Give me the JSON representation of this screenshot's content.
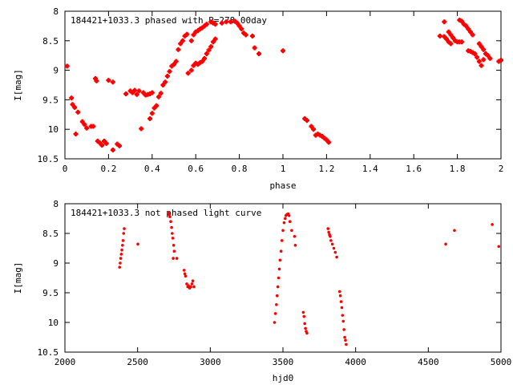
{
  "chart_data": [
    {
      "type": "scatter",
      "title": "184421+1033.3 phased with P=278.00day",
      "xlabel": "phase",
      "ylabel": "I[mag]",
      "xlim": [
        0,
        2
      ],
      "ylim": [
        10.5,
        8
      ],
      "y_inverted": true,
      "xticks": [
        "0",
        "0.2",
        "0.4",
        "0.6",
        "0.8",
        "1",
        "1.2",
        "1.4",
        "1.6",
        "1.8",
        "2"
      ],
      "yticks": [
        "8",
        "8.5",
        "9",
        "9.5",
        "10",
        "10.5"
      ],
      "marker": "plus",
      "color": "#ff0000",
      "series": [
        {
          "points": [
            [
              0.01,
              8.93
            ],
            [
              0.03,
              9.47
            ],
            [
              0.035,
              9.58
            ],
            [
              0.045,
              9.63
            ],
            [
              0.06,
              9.71
            ],
            [
              0.08,
              9.87
            ],
            [
              0.09,
              9.92
            ],
            [
              0.1,
              9.98
            ],
            [
              0.12,
              9.95
            ],
            [
              0.13,
              9.95
            ],
            [
              0.05,
              10.08
            ],
            [
              0.14,
              9.14
            ],
            [
              0.145,
              9.18
            ],
            [
              0.15,
              10.2
            ],
            [
              0.16,
              10.23
            ],
            [
              0.17,
              10.27
            ],
            [
              0.18,
              10.2
            ],
            [
              0.19,
              10.24
            ],
            [
              0.2,
              9.17
            ],
            [
              0.22,
              9.2
            ],
            [
              0.22,
              10.35
            ],
            [
              0.24,
              10.25
            ],
            [
              0.25,
              10.28
            ],
            [
              0.28,
              9.4
            ],
            [
              0.3,
              9.35
            ],
            [
              0.31,
              9.38
            ],
            [
              0.32,
              9.34
            ],
            [
              0.33,
              9.41
            ],
            [
              0.34,
              9.35
            ],
            [
              0.36,
              9.38
            ],
            [
              0.37,
              9.42
            ],
            [
              0.38,
              9.41
            ],
            [
              0.39,
              9.4
            ],
            [
              0.4,
              9.38
            ],
            [
              0.35,
              9.99
            ],
            [
              0.39,
              9.82
            ],
            [
              0.4,
              9.73
            ],
            [
              0.41,
              9.64
            ],
            [
              0.42,
              9.6
            ],
            [
              0.43,
              9.45
            ],
            [
              0.44,
              9.39
            ],
            [
              0.45,
              9.25
            ],
            [
              0.46,
              9.2
            ],
            [
              0.47,
              9.1
            ],
            [
              0.48,
              9.02
            ],
            [
              0.49,
              8.93
            ],
            [
              0.5,
              8.9
            ],
            [
              0.51,
              8.85
            ],
            [
              0.52,
              8.65
            ],
            [
              0.53,
              8.55
            ],
            [
              0.54,
              8.5
            ],
            [
              0.55,
              8.42
            ],
            [
              0.56,
              8.39
            ],
            [
              0.565,
              9.05
            ],
            [
              0.58,
              8.5
            ],
            [
              0.59,
              8.4
            ],
            [
              0.6,
              8.35
            ],
            [
              0.61,
              8.33
            ],
            [
              0.62,
              8.3
            ],
            [
              0.63,
              8.28
            ],
            [
              0.64,
              8.25
            ],
            [
              0.65,
              8.22
            ],
            [
              0.67,
              8.18
            ],
            [
              0.68,
              8.2
            ],
            [
              0.69,
              8.22
            ],
            [
              0.58,
              9.0
            ],
            [
              0.59,
              8.92
            ],
            [
              0.6,
              8.88
            ],
            [
              0.61,
              8.9
            ],
            [
              0.62,
              8.87
            ],
            [
              0.63,
              8.85
            ],
            [
              0.64,
              8.8
            ],
            [
              0.65,
              8.72
            ],
            [
              0.66,
              8.66
            ],
            [
              0.67,
              8.6
            ],
            [
              0.68,
              8.52
            ],
            [
              0.69,
              8.47
            ],
            [
              0.72,
              8.2
            ],
            [
              0.74,
              8.18
            ],
            [
              0.76,
              8.18
            ],
            [
              0.78,
              8.17
            ],
            [
              0.79,
              8.2
            ],
            [
              0.8,
              8.25
            ],
            [
              0.81,
              8.3
            ],
            [
              0.82,
              8.37
            ],
            [
              0.83,
              8.4
            ],
            [
              0.86,
              8.42
            ],
            [
              0.87,
              8.62
            ],
            [
              0.89,
              8.72
            ],
            [
              1.0,
              8.67
            ],
            [
              1.1,
              9.82
            ],
            [
              1.11,
              9.85
            ],
            [
              1.13,
              9.95
            ],
            [
              1.14,
              10.0
            ],
            [
              1.15,
              10.1
            ],
            [
              1.16,
              10.08
            ],
            [
              1.17,
              10.1
            ],
            [
              1.18,
              10.12
            ],
            [
              1.19,
              10.15
            ],
            [
              1.2,
              10.18
            ],
            [
              1.21,
              10.22
            ],
            [
              1.72,
              8.42
            ],
            [
              1.74,
              8.43
            ],
            [
              1.75,
              8.47
            ],
            [
              1.76,
              8.52
            ],
            [
              1.77,
              8.55
            ],
            [
              1.74,
              8.18
            ],
            [
              1.76,
              8.35
            ],
            [
              1.77,
              8.4
            ],
            [
              1.78,
              8.45
            ],
            [
              1.79,
              8.5
            ],
            [
              1.8,
              8.52
            ],
            [
              1.81,
              8.52
            ],
            [
              1.82,
              8.52
            ],
            [
              1.81,
              8.15
            ],
            [
              1.82,
              8.17
            ],
            [
              1.83,
              8.22
            ],
            [
              1.84,
              8.25
            ],
            [
              1.85,
              8.3
            ],
            [
              1.86,
              8.35
            ],
            [
              1.87,
              8.4
            ],
            [
              1.85,
              8.67
            ],
            [
              1.86,
              8.68
            ],
            [
              1.87,
              8.7
            ],
            [
              1.88,
              8.72
            ],
            [
              1.89,
              8.78
            ],
            [
              1.9,
              8.85
            ],
            [
              1.91,
              8.92
            ],
            [
              1.9,
              8.55
            ],
            [
              1.91,
              8.6
            ],
            [
              1.92,
              8.65
            ],
            [
              1.93,
              8.72
            ],
            [
              1.94,
              8.75
            ],
            [
              1.95,
              8.8
            ],
            [
              1.92,
              8.82
            ],
            [
              1.99,
              8.85
            ],
            [
              2.0,
              8.83
            ]
          ]
        }
      ]
    },
    {
      "type": "scatter",
      "title": "184421+1033.3 not phased light curve",
      "xlabel": "hjd0",
      "ylabel": "I[mag]",
      "xlim": [
        2000,
        5000
      ],
      "ylim": [
        10.5,
        8
      ],
      "y_inverted": true,
      "xticks": [
        "2000",
        "2500",
        "3000",
        "3500",
        "4000",
        "4500",
        "5000"
      ],
      "yticks": [
        "8",
        "8.5",
        "9",
        "9.5",
        "10",
        "10.5"
      ],
      "marker": "dot",
      "color": "#ff0000",
      "series": [
        {
          "points": [
            [
              2376,
              9.07
            ],
            [
              2380,
              9.0
            ],
            [
              2384,
              8.92
            ],
            [
              2388,
              8.85
            ],
            [
              2392,
              8.78
            ],
            [
              2396,
              8.7
            ],
            [
              2400,
              8.62
            ],
            [
              2404,
              8.5
            ],
            [
              2408,
              8.42
            ],
            [
              2502,
              8.68
            ],
            [
              2712,
              8.15
            ],
            [
              2716,
              8.18
            ],
            [
              2722,
              8.22
            ],
            [
              2728,
              8.3
            ],
            [
              2734,
              8.4
            ],
            [
              2738,
              8.5
            ],
            [
              2742,
              8.58
            ],
            [
              2748,
              8.7
            ],
            [
              2752,
              8.8
            ],
            [
              2745,
              8.92
            ],
            [
              2770,
              8.92
            ],
            [
              2820,
              9.12
            ],
            [
              2825,
              9.18
            ],
            [
              2830,
              9.22
            ],
            [
              2838,
              9.35
            ],
            [
              2845,
              9.4
            ],
            [
              2850,
              9.38
            ],
            [
              2858,
              9.42
            ],
            [
              2866,
              9.4
            ],
            [
              2874,
              9.35
            ],
            [
              2880,
              9.3
            ],
            [
              2888,
              9.4
            ],
            [
              3442,
              10.0
            ],
            [
              3448,
              9.85
            ],
            [
              3455,
              9.7
            ],
            [
              3460,
              9.55
            ],
            [
              3465,
              9.4
            ],
            [
              3470,
              9.25
            ],
            [
              3475,
              9.1
            ],
            [
              3480,
              8.95
            ],
            [
              3487,
              8.8
            ],
            [
              3493,
              8.62
            ],
            [
              3500,
              8.45
            ],
            [
              3508,
              8.32
            ],
            [
              3515,
              8.25
            ],
            [
              3520,
              8.2
            ],
            [
              3528,
              8.18
            ],
            [
              3536,
              8.17
            ],
            [
              3542,
              8.2
            ],
            [
              3548,
              8.3
            ],
            [
              3560,
              8.45
            ],
            [
              3580,
              8.55
            ],
            [
              3585,
              8.7
            ],
            [
              3640,
              9.83
            ],
            [
              3645,
              9.9
            ],
            [
              3650,
              10.02
            ],
            [
              3655,
              10.1
            ],
            [
              3660,
              10.15
            ],
            [
              3665,
              10.18
            ],
            [
              3810,
              8.42
            ],
            [
              3815,
              8.48
            ],
            [
              3820,
              8.52
            ],
            [
              3825,
              8.55
            ],
            [
              3830,
              8.62
            ],
            [
              3840,
              8.68
            ],
            [
              3850,
              8.75
            ],
            [
              3860,
              8.82
            ],
            [
              3870,
              8.9
            ],
            [
              3890,
              9.48
            ],
            [
              3895,
              9.55
            ],
            [
              3900,
              9.65
            ],
            [
              3905,
              9.75
            ],
            [
              3910,
              9.88
            ],
            [
              3915,
              9.98
            ],
            [
              3920,
              10.12
            ],
            [
              3925,
              10.25
            ],
            [
              3930,
              10.3
            ],
            [
              3935,
              10.37
            ],
            [
              4620,
              8.68
            ],
            [
              4680,
              8.45
            ],
            [
              4940,
              8.35
            ],
            [
              4985,
              8.72
            ]
          ]
        }
      ]
    }
  ]
}
